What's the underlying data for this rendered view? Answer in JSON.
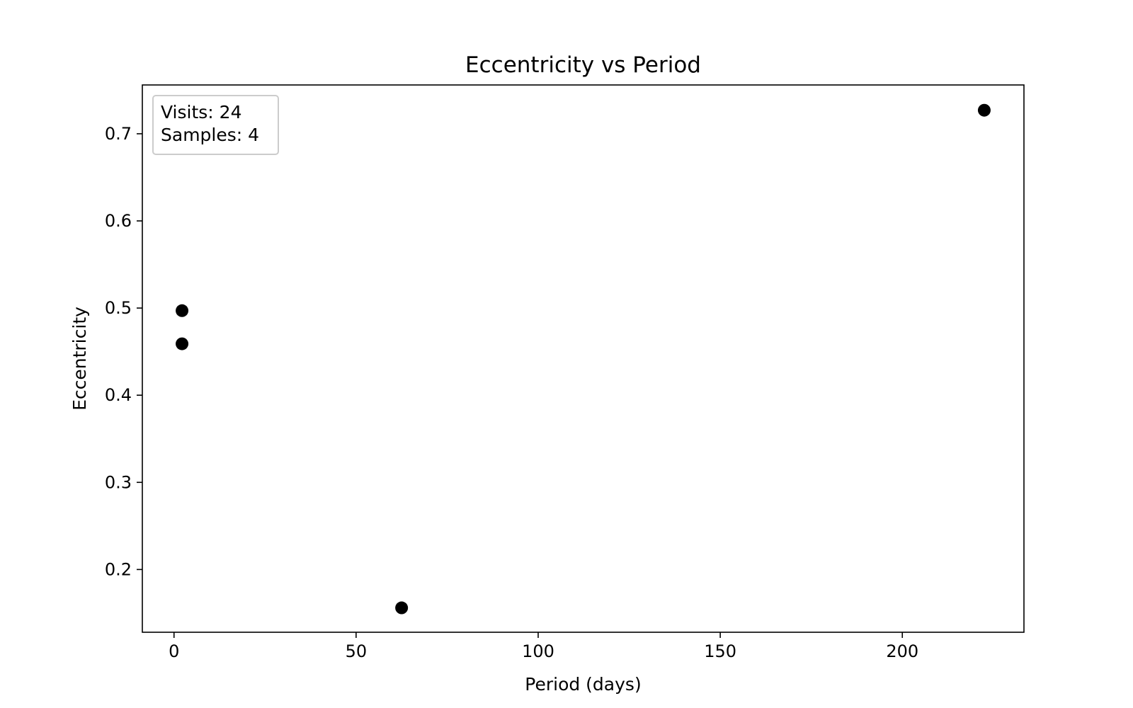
{
  "chart_data": {
    "type": "scatter",
    "title": "Eccentricity vs Period",
    "xlabel": "Period (days)",
    "ylabel": "Eccentricity",
    "xlim": [
      -8.7,
      233.4
    ],
    "ylim": [
      0.128,
      0.756
    ],
    "xticks": [
      0,
      50,
      100,
      150,
      200
    ],
    "yticks": [
      0.2,
      0.3,
      0.4,
      0.5,
      0.6,
      0.7
    ],
    "grid": false,
    "legend": {
      "placement": "top-left",
      "lines": [
        "Visits: 24",
        "Samples: 4"
      ]
    },
    "series": [
      {
        "marker_color": "#000000",
        "points": [
          {
            "x": 2.2,
            "y": 0.497
          },
          {
            "x": 2.2,
            "y": 0.459
          },
          {
            "x": 62.5,
            "y": 0.156
          },
          {
            "x": 222.5,
            "y": 0.727
          }
        ]
      }
    ]
  }
}
